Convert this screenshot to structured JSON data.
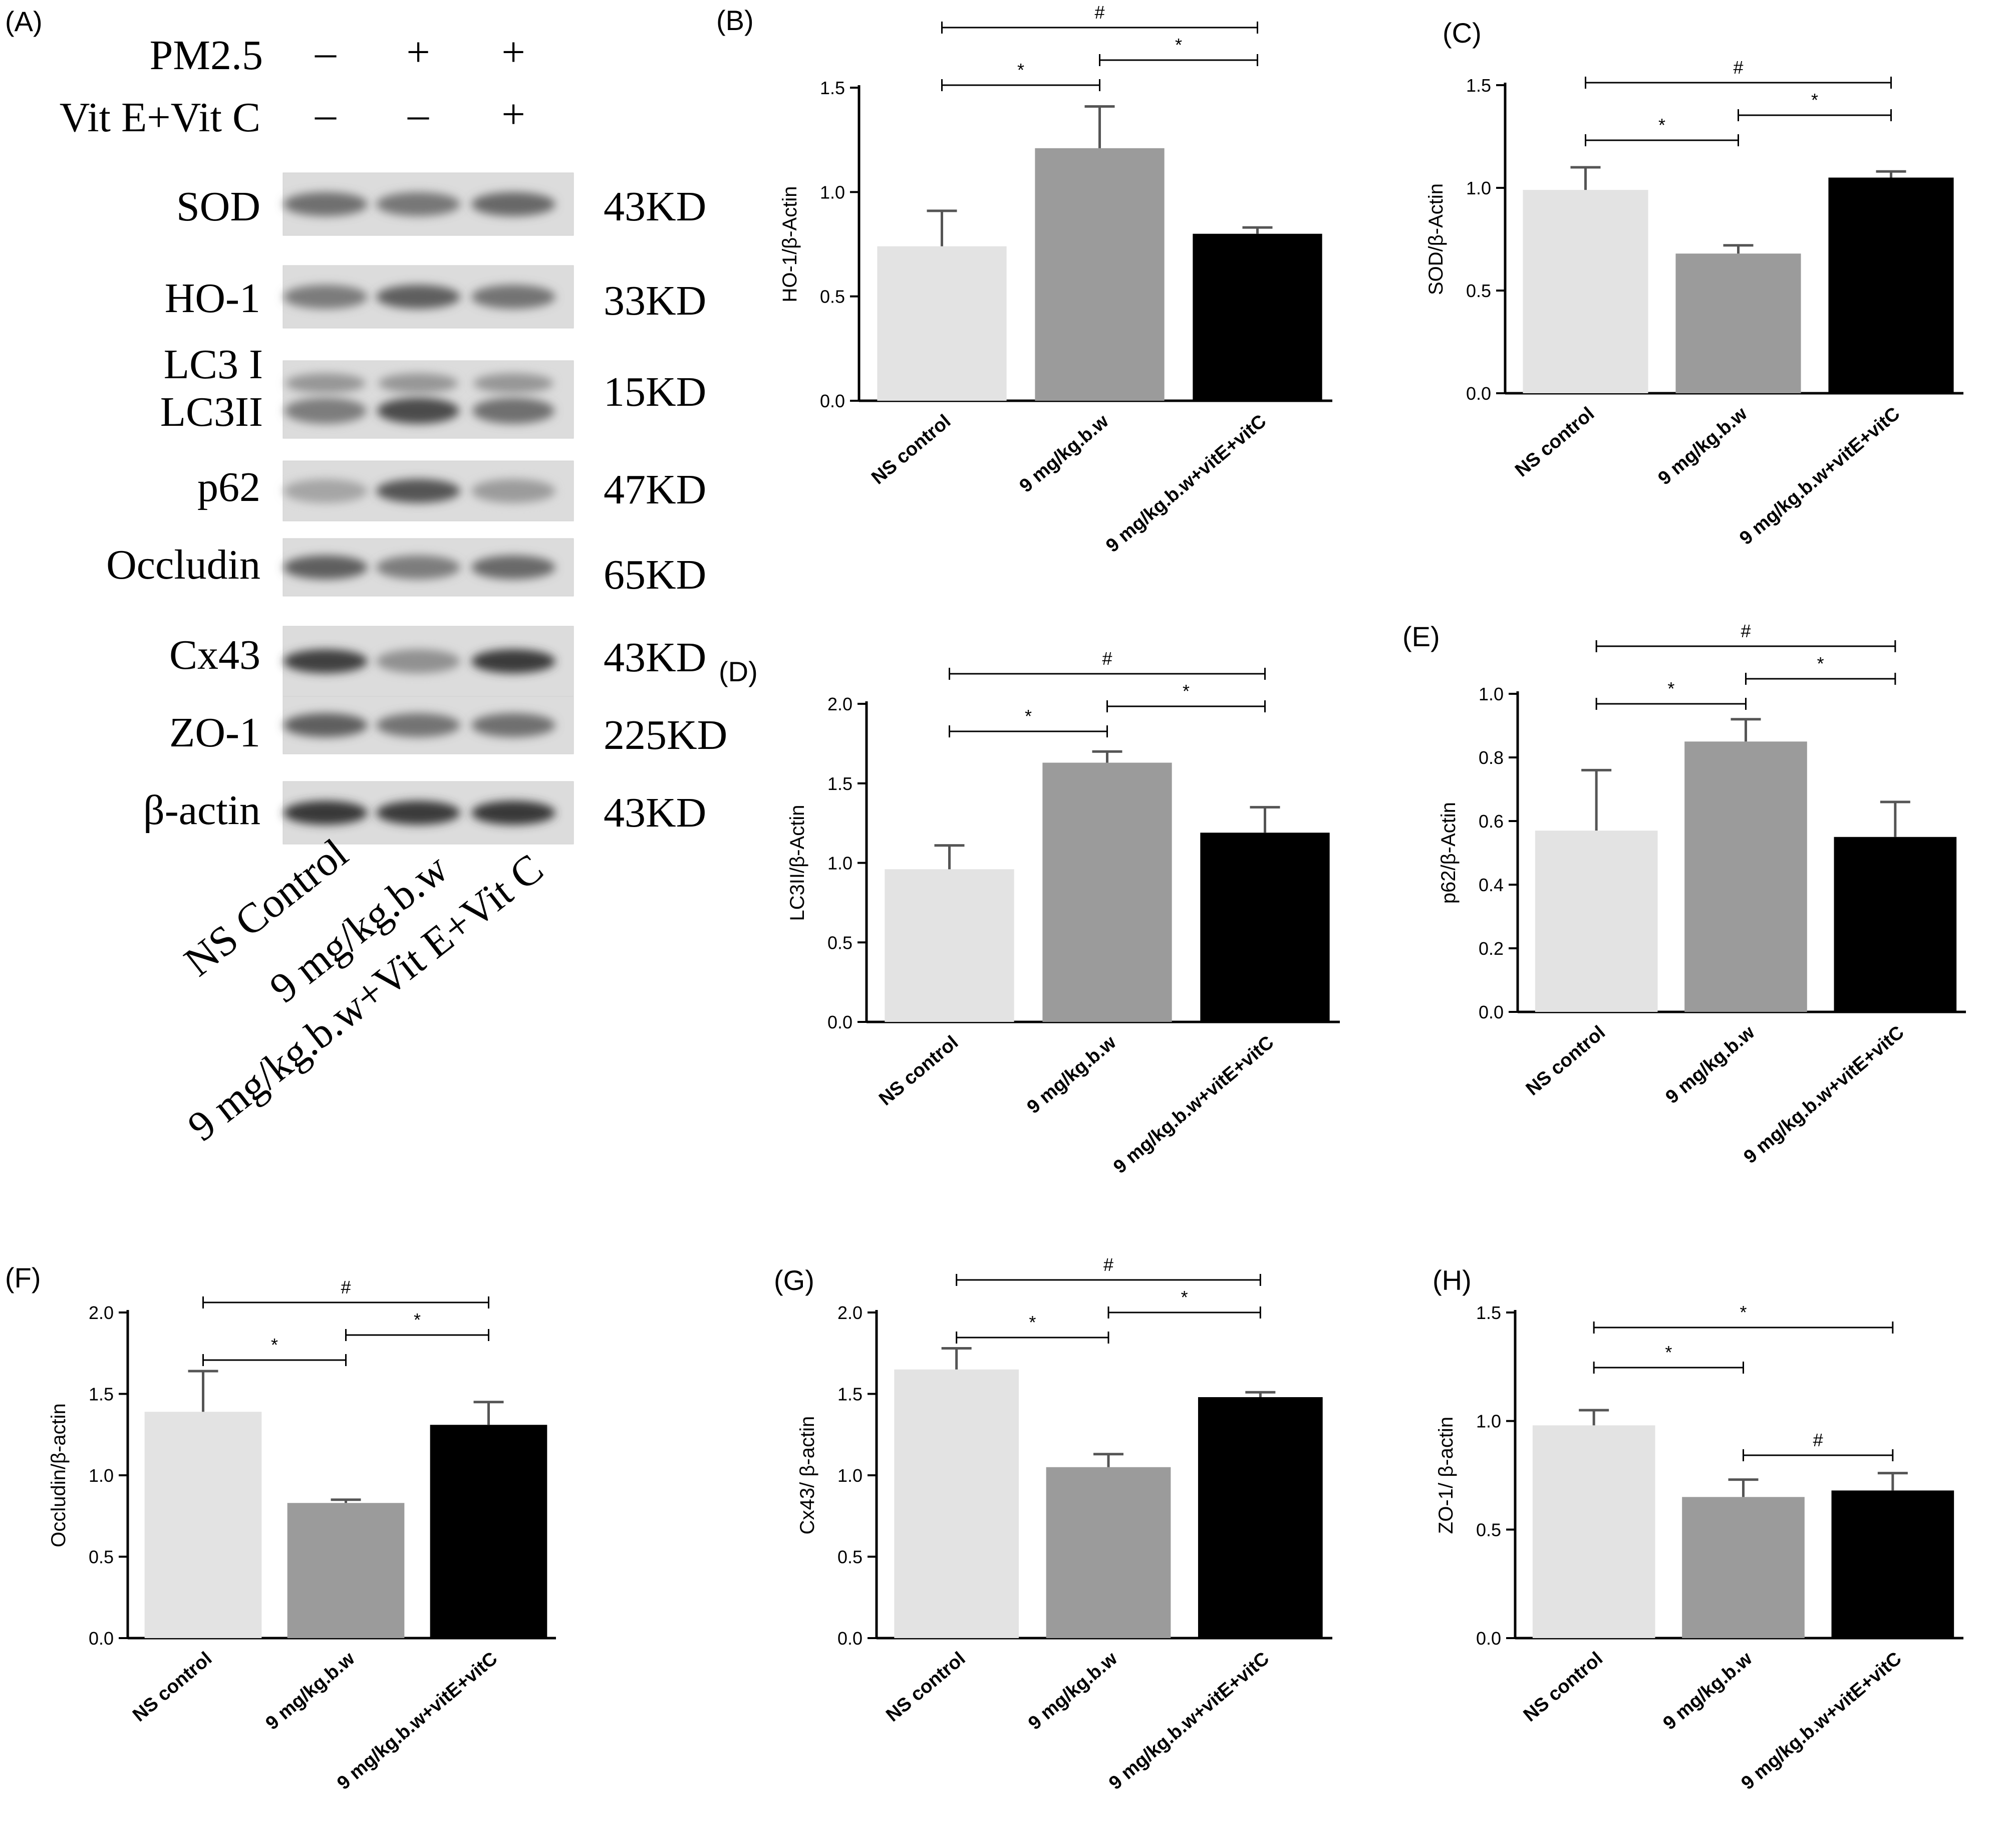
{
  "blot_panel": {
    "letter": "(A)",
    "treatments": [
      {
        "label": "PM2.5",
        "marks": [
          "–",
          "+",
          "+"
        ]
      },
      {
        "label": "Vit E+Vit C",
        "marks": [
          "–",
          "–",
          "+"
        ]
      }
    ],
    "bands": [
      {
        "protein": "SOD",
        "kd": "43KD",
        "intensity": [
          0.62,
          0.58,
          0.66
        ]
      },
      {
        "protein": "HO-1",
        "kd": "33KD",
        "intensity": [
          0.56,
          0.7,
          0.6
        ]
      },
      {
        "protein": "LC3 I\nLC3II",
        "kd": "15KD",
        "intensity": [
          0.55,
          0.8,
          0.62
        ]
      },
      {
        "protein": "p62",
        "kd": "47KD",
        "intensity": [
          0.35,
          0.75,
          0.4
        ]
      },
      {
        "protein": "Occludin",
        "kd": "65KD",
        "intensity": [
          0.7,
          0.55,
          0.65
        ]
      },
      {
        "protein": "Cx43",
        "kd": "43KD",
        "intensity": [
          0.85,
          0.45,
          0.88
        ]
      },
      {
        "protein": "ZO-1",
        "kd": "225KD",
        "intensity": [
          0.7,
          0.6,
          0.62
        ]
      },
      {
        "protein": "β-actin",
        "kd": "43KD",
        "intensity": [
          0.9,
          0.88,
          0.9
        ]
      }
    ],
    "lanes": [
      "NS Control",
      "9 mg/kg.b.w",
      "9 mg/kg.b.w+Vit E+Vit C"
    ]
  },
  "chart_data": [
    {
      "panel": "(B)",
      "type": "bar",
      "ylabel": "HO-1/β-Actin",
      "categories": [
        "NS control",
        "9 mg/kg.b.w",
        "9 mg/kg.b.w+vitE+vitC"
      ],
      "values": [
        0.74,
        1.21,
        0.8
      ],
      "errors": [
        0.17,
        0.2,
        0.03
      ],
      "ylim": [
        0,
        1.5
      ],
      "ticks": [
        "0.0",
        "0.5",
        "1.0",
        "1.5"
      ],
      "sig": [
        {
          "from": 0,
          "to": 2,
          "label": "#"
        },
        {
          "from": 0,
          "to": 1,
          "label": "*"
        },
        {
          "from": 1,
          "to": 2,
          "label": "*"
        }
      ]
    },
    {
      "panel": "(C)",
      "type": "bar",
      "ylabel": "SOD/β-Actin",
      "categories": [
        "NS control",
        "9 mg/kg.b.w",
        "9 mg/kg.b.w+vitE+vitC"
      ],
      "values": [
        0.99,
        0.68,
        1.05
      ],
      "errors": [
        0.11,
        0.04,
        0.03
      ],
      "ylim": [
        0,
        1.5
      ],
      "ticks": [
        "0.0",
        "0.5",
        "1.0",
        "1.5"
      ],
      "sig": [
        {
          "from": 0,
          "to": 2,
          "label": "#"
        },
        {
          "from": 0,
          "to": 1,
          "label": "*"
        },
        {
          "from": 1,
          "to": 2,
          "label": "*"
        }
      ]
    },
    {
      "panel": "(D)",
      "type": "bar",
      "ylabel": "LC3II/β-Actin",
      "categories": [
        "NS control",
        "9 mg/kg.b.w",
        "9 mg/kg.b.w+vitE+vitC"
      ],
      "values": [
        0.96,
        1.63,
        1.19
      ],
      "errors": [
        0.15,
        0.07,
        0.16
      ],
      "ylim": [
        0,
        2.0
      ],
      "ticks": [
        "0.0",
        "0.5",
        "1.0",
        "1.5",
        "2.0"
      ],
      "sig": [
        {
          "from": 0,
          "to": 2,
          "label": "#"
        },
        {
          "from": 0,
          "to": 1,
          "label": "*"
        },
        {
          "from": 1,
          "to": 2,
          "label": "*"
        }
      ]
    },
    {
      "panel": "(E)",
      "type": "bar",
      "ylabel": "p62/β-Actin",
      "categories": [
        "NS control",
        "9 mg/kg.b.w",
        "9 mg/kg.b.w+vitE+vitC"
      ],
      "values": [
        0.57,
        0.85,
        0.55
      ],
      "errors": [
        0.19,
        0.07,
        0.11
      ],
      "ylim": [
        0,
        1.0
      ],
      "ticks": [
        "0.0",
        "0.2",
        "0.4",
        "0.6",
        "0.8",
        "1.0"
      ],
      "sig": [
        {
          "from": 0,
          "to": 2,
          "label": "#"
        },
        {
          "from": 0,
          "to": 1,
          "label": "*"
        },
        {
          "from": 1,
          "to": 2,
          "label": "*"
        }
      ]
    },
    {
      "panel": "(F)",
      "type": "bar",
      "ylabel": "Occludin/β-actin",
      "categories": [
        "NS control",
        "9 mg/kg.b.w",
        "9 mg/kg.b.w+vitE+vitC"
      ],
      "values": [
        1.39,
        0.83,
        1.31
      ],
      "errors": [
        0.25,
        0.02,
        0.14
      ],
      "ylim": [
        0,
        2.0
      ],
      "ticks": [
        "0.0",
        "0.5",
        "1.0",
        "1.5",
        "2.0"
      ],
      "sig": [
        {
          "from": 0,
          "to": 2,
          "label": "#"
        },
        {
          "from": 0,
          "to": 1,
          "label": "*"
        },
        {
          "from": 1,
          "to": 2,
          "label": "*"
        }
      ]
    },
    {
      "panel": "(G)",
      "type": "bar",
      "ylabel": "Cx43/ β-actin",
      "categories": [
        "NS control",
        "9 mg/kg.b.w",
        "9 mg/kg.b.w+vitE+vitC"
      ],
      "values": [
        1.65,
        1.05,
        1.48
      ],
      "errors": [
        0.13,
        0.08,
        0.03
      ],
      "ylim": [
        0,
        2.0
      ],
      "ticks": [
        "0.0",
        "0.5",
        "1.0",
        "1.5",
        "2.0"
      ],
      "sig": [
        {
          "from": 0,
          "to": 2,
          "label": "#"
        },
        {
          "from": 0,
          "to": 1,
          "label": "*"
        },
        {
          "from": 1,
          "to": 2,
          "label": "*"
        }
      ]
    },
    {
      "panel": "(H)",
      "type": "bar",
      "ylabel": "ZO-1/ β-actin",
      "categories": [
        "NS control",
        "9 mg/kg.b.w",
        "9 mg/kg.b.w+vitE+vitC"
      ],
      "values": [
        0.98,
        0.65,
        0.68
      ],
      "errors": [
        0.07,
        0.08,
        0.08
      ],
      "ylim": [
        0,
        1.5
      ],
      "ticks": [
        "0.0",
        "0.5",
        "1.0",
        "1.5"
      ],
      "sig": [
        {
          "from": 0,
          "to": 2,
          "label": "*"
        },
        {
          "from": 0,
          "to": 1,
          "label": "*"
        },
        {
          "from": 1,
          "to": 2,
          "label": "#"
        }
      ]
    }
  ],
  "colors": {
    "bar": [
      "#e3e3e3",
      "#9b9b9b",
      "#000000"
    ],
    "axis": "#000000"
  }
}
